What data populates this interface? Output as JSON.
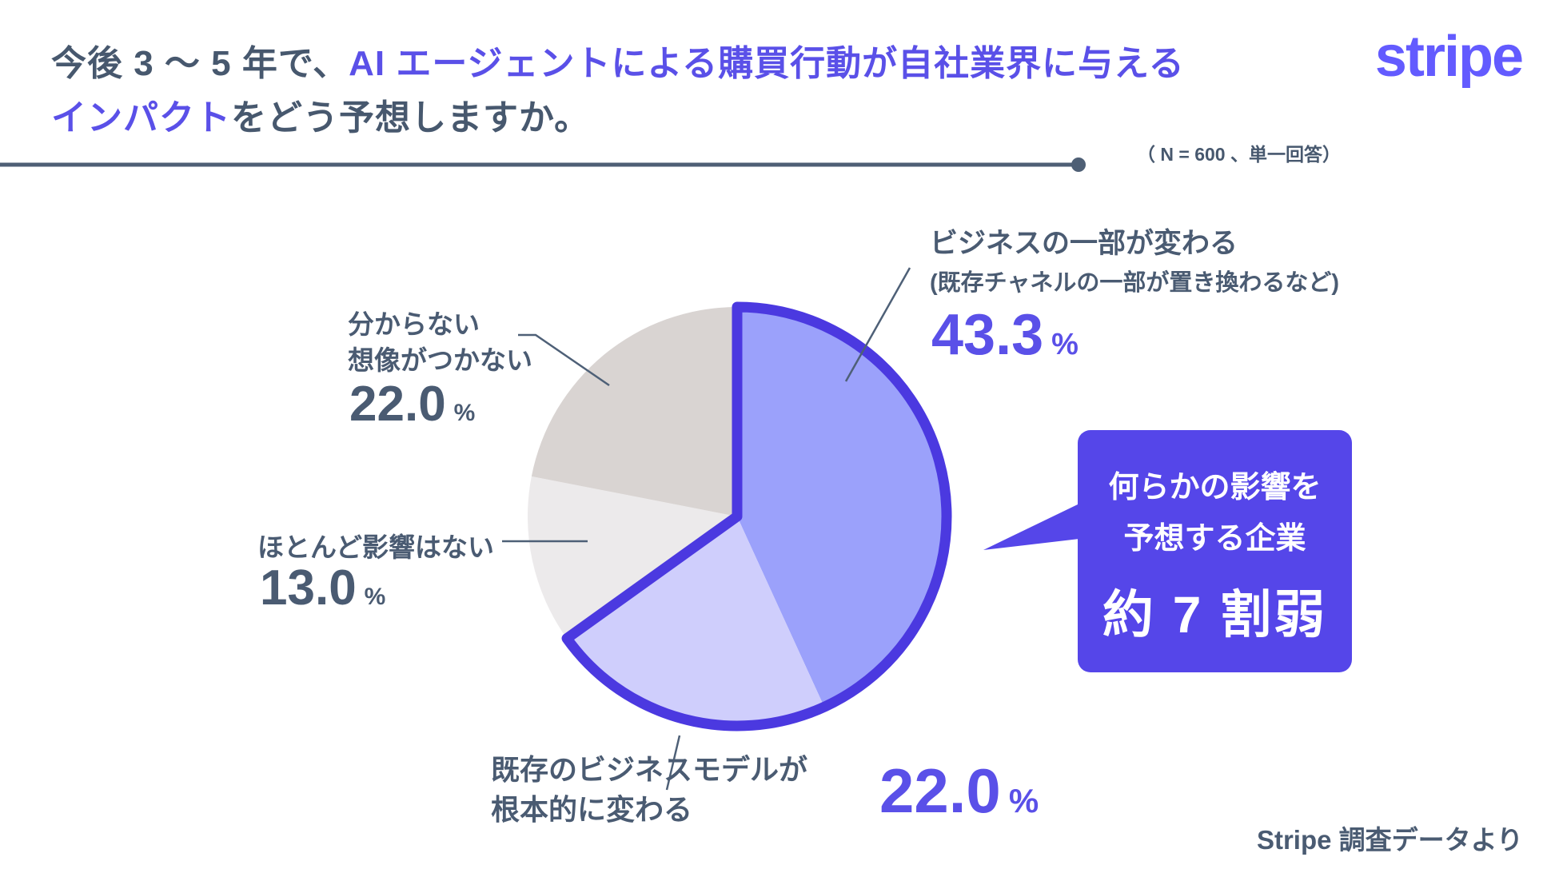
{
  "header": {
    "title_line1_dark": "今後 3 〜 5 年で、",
    "title_line1_accent": "AI エージェントによる購買行動が自社業界に与える",
    "title_line2_accent": "インパクト",
    "title_line2_dark": "をどう予想しますか。",
    "note": "（ N = 600 、単一回答）",
    "logo_text": "stripe"
  },
  "chart_data": {
    "type": "pie",
    "title": "今後3〜5年で、AIエージェントによる購買行動が自社業界に与えるインパクトをどう予想しますか。",
    "sample_note": "N = 600、単一回答",
    "start_angle": "top",
    "direction": "clockwise",
    "segments": [
      {
        "label": "ビジネスの一部が変わる",
        "sublabel": "(既存チャネルの一部が置き換わるなど)",
        "value": 43.3,
        "value_display": "43.3",
        "unit": "%",
        "color": "#9ba1fb",
        "highlighted": true
      },
      {
        "label_lines": [
          "既存のビジネスモデルが",
          "根本的に変わる"
        ],
        "value": 22.0,
        "value_display": "22.0",
        "unit": "%",
        "color": "#cfcefc",
        "highlighted": true
      },
      {
        "label": "ほとんど影響はない",
        "value": 13.0,
        "value_display": "13.0",
        "unit": "%",
        "color": "#eceaeb",
        "highlighted": false
      },
      {
        "label_lines": [
          "分からない",
          "想像がつかない"
        ],
        "value": 22.0,
        "value_display": "22.0",
        "unit": "%",
        "color": "#d9d4d2",
        "highlighted": false
      }
    ],
    "highlight": {
      "outline_color": "#4b39e0",
      "highlighted_total": 65.3,
      "callout_line1": "何らかの影響を",
      "callout_line2": "予想する企業",
      "callout_emphasis": "約 7 割弱"
    }
  },
  "footer": {
    "source": "Stripe 調査データより"
  },
  "theme": {
    "accent": "#5a50e8",
    "dark_text": "#4a5b72",
    "title_dark": "#47586e",
    "logo_color": "#635bff",
    "callout_bg": "#5546e9",
    "rule_color": "#4e5f75",
    "leader_color": "#4e6077"
  }
}
